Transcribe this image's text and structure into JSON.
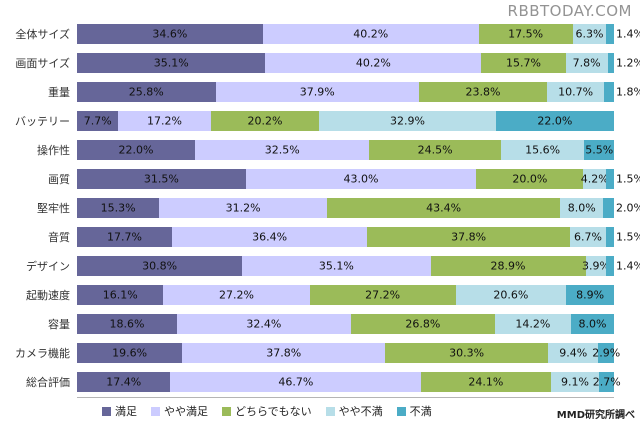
{
  "header": {
    "brand": "RBBTODAY.COM"
  },
  "footer": {
    "source": "MMD研究所調べ"
  },
  "legend": [
    {
      "label": "満足",
      "color": "#666699"
    },
    {
      "label": "やや満足",
      "color": "#CCCCFF"
    },
    {
      "label": "どちらでもない",
      "color": "#9BBB59"
    },
    {
      "label": "やや不満",
      "color": "#B7DEE8"
    },
    {
      "label": "不満",
      "color": "#4BACC6"
    }
  ],
  "chart_data": {
    "type": "bar",
    "stacked": true,
    "orientation": "horizontal",
    "value_suffix": "%",
    "xlim": [
      0,
      100
    ],
    "grid": false,
    "legend_position": "bottom",
    "categories": [
      "全体サイズ",
      "画面サイズ",
      "重量",
      "バッテリー",
      "操作性",
      "画質",
      "堅牢性",
      "音質",
      "デザイン",
      "起動速度",
      "容量",
      "カメラ機能",
      "総合評価"
    ],
    "series": [
      {
        "name": "満足",
        "color": "#666699",
        "values": [
          34.6,
          35.1,
          25.8,
          7.7,
          22.0,
          31.5,
          15.3,
          17.7,
          30.8,
          16.1,
          18.6,
          19.6,
          17.4
        ]
      },
      {
        "name": "やや満足",
        "color": "#CCCCFF",
        "values": [
          40.2,
          40.2,
          37.9,
          17.2,
          32.5,
          43.0,
          31.2,
          36.4,
          35.1,
          27.2,
          32.4,
          37.8,
          46.7
        ]
      },
      {
        "name": "どちらでもない",
        "color": "#9BBB59",
        "values": [
          17.5,
          15.7,
          23.8,
          20.2,
          24.5,
          20.0,
          43.4,
          37.8,
          28.9,
          27.2,
          26.8,
          30.3,
          24.1
        ]
      },
      {
        "name": "やや不満",
        "color": "#B7DEE8",
        "values": [
          6.3,
          7.8,
          10.7,
          32.9,
          15.6,
          4.2,
          8.0,
          6.7,
          3.9,
          20.6,
          14.2,
          9.4,
          9.1
        ]
      },
      {
        "name": "不満",
        "color": "#4BACC6",
        "values": [
          1.4,
          1.2,
          1.8,
          22.0,
          5.5,
          1.5,
          2.0,
          1.5,
          1.4,
          8.9,
          8.0,
          2.9,
          2.7
        ]
      }
    ]
  }
}
